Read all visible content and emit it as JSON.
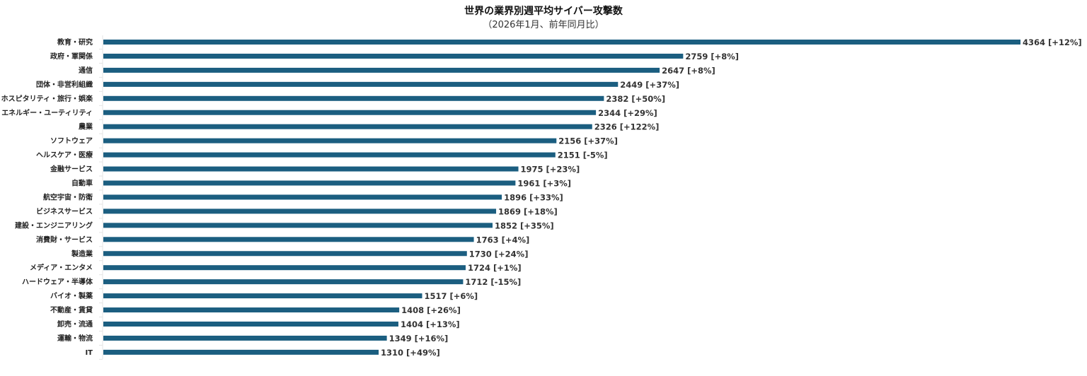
{
  "chart_data": {
    "type": "bar",
    "orientation": "horizontal",
    "title": "世界の業界別週平均サイバー攻撃数",
    "subtitle": "（2026年1月、前年同月比）",
    "bar_color": "#1b5e80",
    "grid": false,
    "categories": [
      "教育・研究",
      "政府・軍関係",
      "通信",
      "団体・非営利組織",
      "ホスピタリティ・旅行・娯楽",
      "エネルギー・ユーティリティ",
      "農業",
      "ソフトウェア",
      "ヘルスケア・医療",
      "金融サービス",
      "自動車",
      "航空宇宙・防衛",
      "ビジネスサービス",
      "建設・エンジニアリング",
      "消費財・サービス",
      "製造業",
      "メディア・エンタメ",
      "ハードウェア・半導体",
      "バイオ・製薬",
      "不動産・賃貸",
      "卸売・流通",
      "運輸・物流",
      "IT"
    ],
    "values": [
      4364,
      2759,
      2647,
      2449,
      2382,
      2344,
      2326,
      2156,
      2151,
      1975,
      1961,
      1896,
      1869,
      1852,
      1763,
      1730,
      1724,
      1712,
      1517,
      1408,
      1404,
      1349,
      1310
    ],
    "changes": [
      "[+12%]",
      "[+8%]",
      "[+8%]",
      "[+37%]",
      "[+50%]",
      "[+29%]",
      "[+122%]",
      "[+37%]",
      "[-5%]",
      "[+23%]",
      "[+3%]",
      "[+33%]",
      "[+18%]",
      "[+35%]",
      "[+4%]",
      "[+24%]",
      "[+1%]",
      "[-15%]",
      "[+6%]",
      "[+26%]",
      "[+13%]",
      "[+16%]",
      "[+49%]"
    ],
    "xlim": [
      0,
      4364
    ]
  }
}
